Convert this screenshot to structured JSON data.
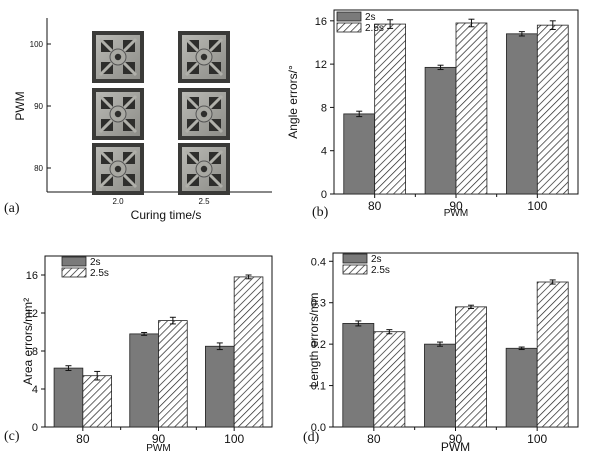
{
  "panel_a": {
    "panel_label": "(a)",
    "xlabel": "Curing time/s",
    "ylabel": "PWM",
    "x_ticks": [
      "2.0",
      "2.5"
    ],
    "y_ticks": [
      "100",
      "90",
      "80"
    ],
    "images": [
      {
        "pwm": "100",
        "time": "2.0"
      },
      {
        "pwm": "100",
        "time": "2.5"
      },
      {
        "pwm": "90",
        "time": "2.0"
      },
      {
        "pwm": "90",
        "time": "2.5"
      },
      {
        "pwm": "80",
        "time": "2.0"
      },
      {
        "pwm": "80",
        "time": "2.5"
      }
    ]
  },
  "colors": {
    "solid_bar": "#7a7a7a",
    "hatch_bar": "#ffffff",
    "axis": "#111111"
  },
  "chart_data": [
    {
      "type": "bar",
      "panel_label": "(b)",
      "categories": [
        "80",
        "90",
        "100"
      ],
      "xlabel": "PWM",
      "ylabel": "Angle errors/°",
      "ylim": [
        0,
        17
      ],
      "yticks": [
        0,
        4,
        8,
        12,
        16
      ],
      "legend_position": "top-left",
      "series": [
        {
          "name": "2s",
          "style": "solid-gray",
          "values": [
            7.4,
            11.7,
            14.8
          ],
          "errors": [
            0.25,
            0.2,
            0.2
          ]
        },
        {
          "name": "2.5s",
          "style": "hatched",
          "values": [
            15.7,
            15.8,
            15.6
          ],
          "errors": [
            0.4,
            0.35,
            0.4
          ]
        }
      ]
    },
    {
      "type": "bar",
      "panel_label": "(c)",
      "categories": [
        "80",
        "90",
        "100"
      ],
      "xlabel": "PWM",
      "ylabel": "Area errors/mm²",
      "ylim": [
        0,
        18
      ],
      "yticks": [
        0,
        4,
        8,
        12,
        16
      ],
      "legend_position": "top-left",
      "series": [
        {
          "name": "2s",
          "style": "solid-gray",
          "values": [
            6.2,
            9.8,
            8.5
          ],
          "errors": [
            0.25,
            0.15,
            0.35
          ]
        },
        {
          "name": "2.5s",
          "style": "hatched",
          "values": [
            5.4,
            11.2,
            15.8
          ],
          "errors": [
            0.45,
            0.35,
            0.2
          ]
        }
      ]
    },
    {
      "type": "bar",
      "panel_label": "(d)",
      "categories": [
        "80",
        "90",
        "100"
      ],
      "xlabel": "PWM",
      "ylabel": "Length errors/mm",
      "ylim": [
        0,
        0.42
      ],
      "yticks": [
        0.0,
        0.1,
        0.2,
        0.3,
        0.4
      ],
      "legend_position": "top-left",
      "series": [
        {
          "name": "2s",
          "style": "solid-gray",
          "values": [
            0.25,
            0.2,
            0.19
          ],
          "errors": [
            0.006,
            0.005,
            0.003
          ]
        },
        {
          "name": "2.5s",
          "style": "hatched",
          "values": [
            0.23,
            0.29,
            0.35
          ],
          "errors": [
            0.005,
            0.004,
            0.005
          ]
        }
      ]
    }
  ]
}
